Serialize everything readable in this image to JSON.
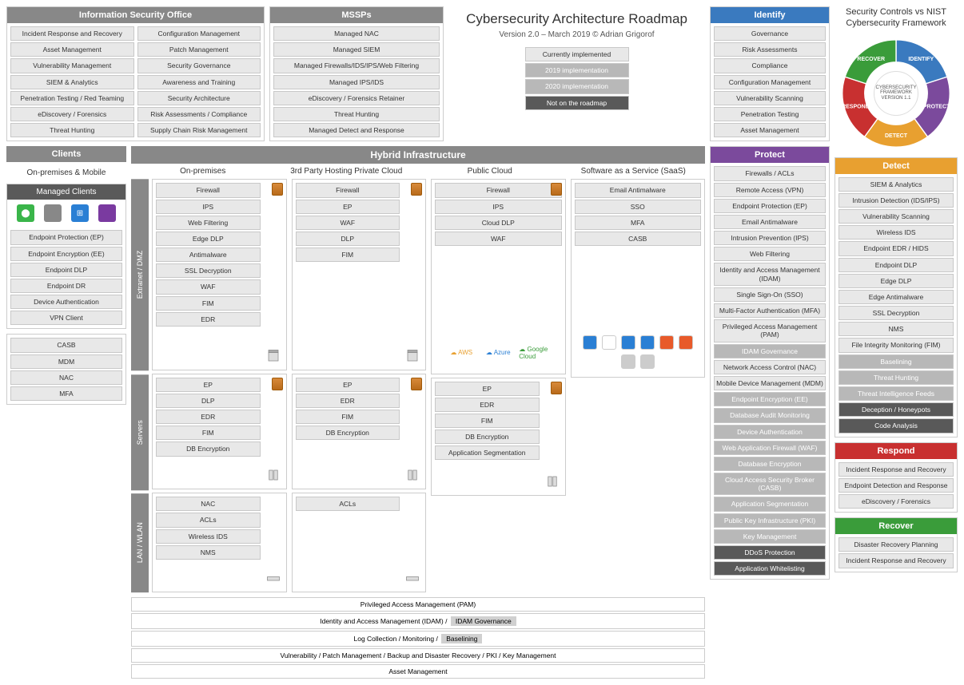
{
  "title": "Cybersecurity Architecture Roadmap",
  "version": "Version 2.0 – March 2019 ©   Adrian Grigorof",
  "legend": {
    "current": "Currently implemented",
    "y2019": "2019 implementation",
    "y2020": "2020 implementation",
    "none": "Not on the roadmap"
  },
  "iso": {
    "title": "Information Security Office",
    "col1": [
      "Incident Response and Recovery",
      "Asset Management",
      "Vulnerability Management",
      "SIEM & Analytics",
      "Penetration Testing / Red Teaming",
      "eDiscovery / Forensics",
      "Threat Hunting"
    ],
    "col2": [
      "Configuration Management",
      "Patch Management",
      "Security Governance",
      "Awareness and Training",
      "Security Architecture",
      "Risk Assessments / Compliance",
      "Supply Chain Risk Management"
    ]
  },
  "mssp": {
    "title": "MSSPs",
    "items": [
      "Managed NAC",
      "Managed SIEM",
      "Managed Firewalls/IDS/IPS/Web Filtering",
      "Managed IPS/IDS",
      "eDiscovery / Forensics Retainer",
      "Threat Hunting",
      "Managed Detect and Response"
    ]
  },
  "clients": {
    "title": "Clients",
    "sub": "On-premises & Mobile",
    "managed_title": "Managed Clients",
    "os_colors": [
      "#3ab54a",
      "#888888",
      "#2a7fd4",
      "#7a3aa0"
    ],
    "os_glyphs": [
      "⬤",
      "",
      "⊞",
      ""
    ],
    "managed_items": [
      "Endpoint Protection (EP)",
      "Endpoint Encryption (EE)",
      "Endpoint DLP",
      "Endpoint DR",
      "Device Authentication",
      "VPN Client"
    ],
    "other_items": [
      "CASB",
      "MDM",
      "NAC",
      "MFA"
    ]
  },
  "hybrid": {
    "title": "Hybrid Infrastructure",
    "cols": [
      "On-premises",
      "3rd Party Hosting Private Cloud",
      "Public Cloud",
      "Software as a Service (SaaS)"
    ],
    "vtabs": [
      "Extranet / DMZ",
      "Servers",
      "LAN / WLAN"
    ],
    "onprem_dmz": [
      "Firewall",
      "IPS",
      "Web Filtering",
      "Edge DLP",
      "Antimalware",
      "SSL Decryption",
      "WAF",
      "FIM",
      "EDR"
    ],
    "onprem_srv": [
      "EP",
      "DLP",
      "EDR",
      "FIM",
      "DB Encryption"
    ],
    "onprem_lan": [
      "NAC",
      "ACLs",
      "Wireless IDS",
      "NMS"
    ],
    "priv_dmz": [
      "Firewall",
      "EP",
      "WAF",
      "DLP",
      "FIM"
    ],
    "priv_srv": [
      "EP",
      "EDR",
      "FIM",
      "DB Encryption"
    ],
    "priv_lan": [
      "ACLs"
    ],
    "pub_dmz": [
      "Firewall",
      "IPS",
      "Cloud DLP",
      "WAF"
    ],
    "pub_srv": [
      "EP",
      "EDR",
      "FIM",
      "DB Encryption",
      "Application Segmentation"
    ],
    "saas_items": [
      "Email Antimalware",
      "SSO",
      "MFA",
      "CASB"
    ],
    "cloud_providers": [
      "AWS",
      "Microsoft Azure",
      "Google Cloud"
    ],
    "saas_logo_colors": [
      "#2a7fd4",
      "#ffffff",
      "#2a7fd4",
      "#2a7fd4",
      "#e85a2a",
      "#e85a2a",
      "#cccccc",
      "#cccccc"
    ]
  },
  "bottom": {
    "pam": "Privileged Access Management (PAM)",
    "idam_pre": "Identity and Access Management (IDAM) /",
    "idam_pill": "IDAM Governance",
    "log_pre": "Log Collection / Monitoring /",
    "log_pill": "Baselining",
    "vuln": "Vulnerability / Patch Management / Backup and Disaster Recovery / PKI / Key Management",
    "asset": "Asset Management"
  },
  "nist": {
    "identify": {
      "title": "Identify",
      "items": [
        "Governance",
        "Risk Assessments",
        "Compliance",
        "Configuration Management",
        "Vulnerability Scanning",
        "Penetration Testing",
        "Asset Management"
      ]
    },
    "protect": {
      "title": "Protect",
      "items": [
        "Firewalls / ACLs",
        "Remote Access (VPN)",
        "Endpoint Protection (EP)",
        "Email Antimalware",
        "Intrusion Prevention (IPS)",
        "Web Filtering",
        "Identity and Access Management (IDAM)",
        "Single Sign-On (SSO)",
        "Multi-Factor Authentication (MFA)",
        "Privileged Access Management (PAM)",
        "IDAM Governance",
        "Network Access Control (NAC)",
        "Mobile Device Management (MDM)",
        "Endpoint Encryption (EE)",
        "Database Audit Monitoring",
        "Device Authentication",
        "Web Application Firewall (WAF)",
        "Database Encryption",
        "Cloud Access Security Broker (CASB)",
        "Application Segmentation",
        "Public Key Infrastructure (PKI)",
        "Key Management",
        "DDoS Protection",
        "Application Whitelisting"
      ],
      "styles": [
        "",
        "",
        "",
        "",
        "",
        "",
        "",
        "",
        "",
        "",
        "dim",
        "",
        "",
        "dim",
        "dim",
        "dim",
        "dim",
        "dim",
        "dim",
        "dim",
        "dim",
        "dim",
        "dark",
        "dark"
      ]
    },
    "detect": {
      "title": "Detect",
      "items": [
        "SIEM & Analytics",
        "Intrusion Detection (IDS/IPS)",
        "Vulnerability Scanning",
        "Wireless IDS",
        "Endpoint EDR / HIDS",
        "Endpoint DLP",
        "Edge DLP",
        "Edge Antimalware",
        "SSL Decryption",
        "NMS",
        "File Integrity Monitoring (FIM)",
        "Baselining",
        "Threat Hunting",
        "Threat Intelligence Feeds",
        "Deception / Honeypots",
        "Code Analysis"
      ],
      "styles": [
        "",
        "",
        "",
        "",
        "",
        "",
        "",
        "",
        "",
        "",
        "",
        "dim",
        "dim",
        "dim",
        "dark",
        "dark"
      ]
    },
    "respond": {
      "title": "Respond",
      "items": [
        "Incident Response and Recovery",
        "Endpoint Detection and Response",
        "eDiscovery / Forensics"
      ]
    },
    "recover": {
      "title": "Recover",
      "items": [
        "Disaster Recovery Planning",
        "Incident Response and Recovery"
      ]
    }
  },
  "wheel": {
    "title": "Security Controls vs NIST Cybersecurity Framework",
    "center": "CYBERSECURITY FRAMEWORK VERSION 1.1",
    "segments": [
      {
        "label": "IDENTIFY",
        "color": "#3a7abf"
      },
      {
        "label": "PROTECT",
        "color": "#7b4a9c"
      },
      {
        "label": "DETECT",
        "color": "#e8a030"
      },
      {
        "label": "RESPOND",
        "color": "#c83030"
      },
      {
        "label": "RECOVER",
        "color": "#3a9c3a"
      }
    ]
  }
}
